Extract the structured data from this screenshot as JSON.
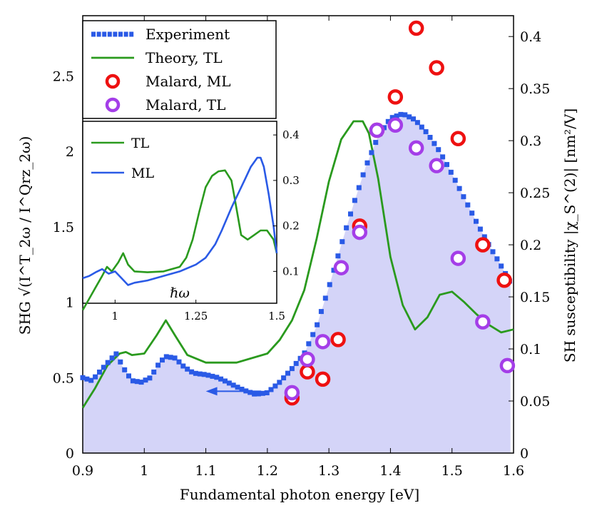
{
  "chart_data": {
    "type": "line",
    "xlabel": "Fundamental photon energy [eV]",
    "ylabel_left": "SHG √(I^T_2ω / I^Qrz_2ω)",
    "ylabel_right": "SH susceptibility |χ_S^(2)| [nm²/V]",
    "xlim": [
      0.9,
      1.6
    ],
    "ylim_left": [
      0,
      2.9
    ],
    "ylim_right": [
      0,
      0.42
    ],
    "x_ticks": [
      "0.9",
      "1",
      "1.1",
      "1.2",
      "1.3",
      "1.4",
      "1.5",
      "1.6"
    ],
    "y_ticks_left": [
      "0",
      "0.5",
      "1",
      "1.5",
      "2",
      "2.5"
    ],
    "y_ticks_right": [
      "0",
      "0.05",
      "0.1",
      "0.15",
      "0.2",
      "0.25",
      "0.3",
      "0.35",
      "0.4"
    ],
    "legend": [
      "Experiment",
      "Theory, TL",
      "Malard, ML",
      "Malard, TL"
    ],
    "colors": {
      "experiment": "#2a5ae6",
      "fill": "#d4d4f8",
      "theory": "#2a9a1e",
      "malard_ml": "#ee1111",
      "malard_tl": "#a43ee8",
      "inset_ml": "#2a5ae6"
    },
    "experiment": {
      "x": [
        0.9,
        0.915,
        0.93,
        0.945,
        0.955,
        0.965,
        0.98,
        0.995,
        1.01,
        1.025,
        1.035,
        1.05,
        1.065,
        1.08,
        1.1,
        1.12,
        1.14,
        1.16,
        1.18,
        1.2,
        1.22,
        1.24,
        1.26,
        1.28,
        1.3,
        1.32,
        1.34,
        1.36,
        1.38,
        1.4,
        1.42,
        1.44,
        1.46,
        1.48,
        1.5,
        1.52,
        1.54,
        1.56,
        1.58,
        1.595
      ],
      "y": [
        0.5,
        0.48,
        0.55,
        0.62,
        0.66,
        0.57,
        0.48,
        0.47,
        0.5,
        0.6,
        0.64,
        0.63,
        0.57,
        0.53,
        0.52,
        0.5,
        0.46,
        0.42,
        0.39,
        0.4,
        0.47,
        0.56,
        0.66,
        0.84,
        1.1,
        1.38,
        1.65,
        1.9,
        2.1,
        2.22,
        2.25,
        2.21,
        2.12,
        2.0,
        1.85,
        1.69,
        1.53,
        1.38,
        1.24,
        1.13
      ]
    },
    "theory_tl": {
      "x": [
        0.9,
        0.92,
        0.94,
        0.96,
        0.97,
        0.98,
        1.0,
        1.02,
        1.035,
        1.05,
        1.07,
        1.1,
        1.15,
        1.2,
        1.22,
        1.24,
        1.26,
        1.28,
        1.3,
        1.32,
        1.34,
        1.355,
        1.365,
        1.38,
        1.4,
        1.42,
        1.44,
        1.46,
        1.48,
        1.5,
        1.52,
        1.54,
        1.56,
        1.58,
        1.6
      ],
      "y": [
        0.3,
        0.43,
        0.58,
        0.66,
        0.67,
        0.65,
        0.66,
        0.78,
        0.88,
        0.78,
        0.65,
        0.6,
        0.6,
        0.66,
        0.75,
        0.88,
        1.08,
        1.42,
        1.8,
        2.08,
        2.2,
        2.2,
        2.12,
        1.82,
        1.3,
        0.98,
        0.82,
        0.9,
        1.05,
        1.07,
        1.0,
        0.92,
        0.85,
        0.8,
        0.82
      ]
    },
    "malard_ml": {
      "x": [
        1.24,
        1.265,
        1.29,
        1.315,
        1.35,
        1.378,
        1.408,
        1.442,
        1.475,
        1.51,
        1.55,
        1.585
      ],
      "y_right": [
        0.053,
        0.078,
        0.071,
        0.109,
        0.218,
        0.31,
        0.342,
        0.408,
        0.37,
        0.302,
        0.2,
        0.166
      ]
    },
    "malard_tl": {
      "x": [
        1.24,
        1.265,
        1.29,
        1.32,
        1.35,
        1.378,
        1.408,
        1.442,
        1.475,
        1.51,
        1.55,
        1.59
      ],
      "y_right": [
        0.058,
        0.09,
        0.107,
        0.178,
        0.212,
        0.31,
        0.315,
        0.293,
        0.276,
        0.187,
        0.126,
        0.084
      ]
    },
    "arrow": {
      "from_x": 1.19,
      "to_x": 1.1,
      "y": 0.41
    },
    "inset": {
      "xlabel": "ℏω",
      "xlim": [
        0.9,
        1.5
      ],
      "ylim": [
        0.03,
        0.43
      ],
      "x_ticks": [
        "1",
        "1.25",
        "1.5"
      ],
      "y_ticks": [
        "0.1",
        "0.2",
        "0.3",
        "0.4"
      ],
      "legend": [
        "TL",
        "ML"
      ],
      "tl": {
        "x": [
          0.9,
          0.92,
          0.94,
          0.96,
          0.975,
          0.99,
          1.01,
          1.025,
          1.04,
          1.06,
          1.1,
          1.15,
          1.2,
          1.22,
          1.24,
          1.26,
          1.28,
          1.3,
          1.32,
          1.34,
          1.36,
          1.37,
          1.39,
          1.41,
          1.43,
          1.45,
          1.47,
          1.49,
          1.5
        ],
        "y": [
          0.015,
          0.04,
          0.065,
          0.09,
          0.11,
          0.1,
          0.12,
          0.14,
          0.115,
          0.1,
          0.098,
          0.1,
          0.11,
          0.13,
          0.17,
          0.23,
          0.285,
          0.31,
          0.32,
          0.322,
          0.3,
          0.26,
          0.18,
          0.17,
          0.18,
          0.19,
          0.19,
          0.17,
          0.14
        ]
      },
      "ml": {
        "x": [
          0.9,
          0.92,
          0.94,
          0.96,
          0.98,
          1.0,
          1.02,
          1.04,
          1.06,
          1.1,
          1.15,
          1.2,
          1.25,
          1.28,
          1.31,
          1.33,
          1.36,
          1.38,
          1.4,
          1.42,
          1.44,
          1.45,
          1.46,
          1.475,
          1.49,
          1.5
        ],
        "y": [
          0.085,
          0.09,
          0.098,
          0.105,
          0.095,
          0.1,
          0.085,
          0.07,
          0.075,
          0.08,
          0.09,
          0.1,
          0.115,
          0.13,
          0.16,
          0.19,
          0.24,
          0.27,
          0.3,
          0.33,
          0.35,
          0.35,
          0.33,
          0.27,
          0.2,
          0.14
        ]
      }
    }
  }
}
